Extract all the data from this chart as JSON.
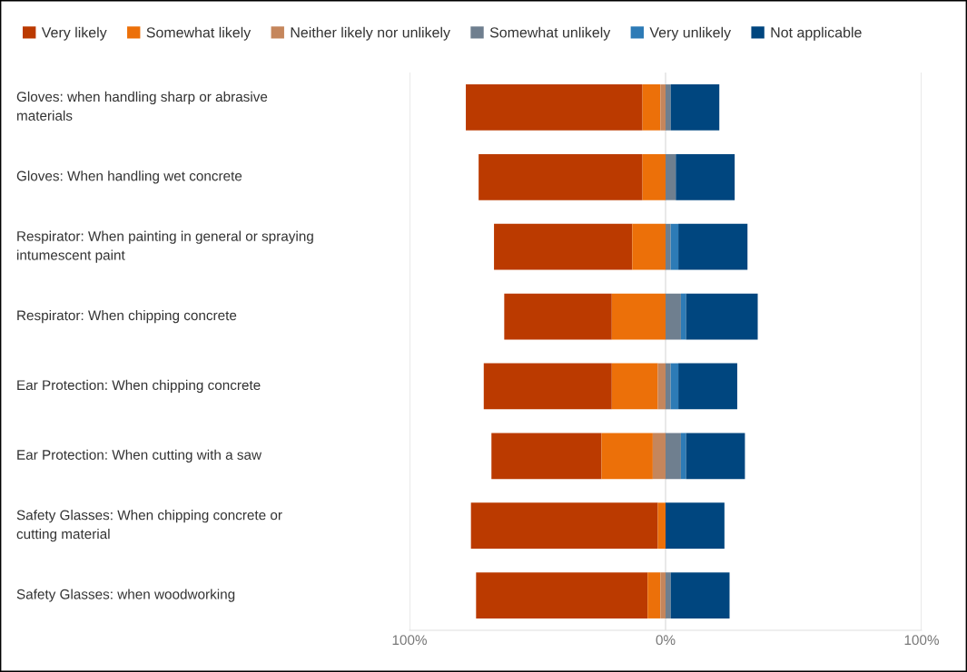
{
  "chart_data": {
    "type": "bar",
    "orientation": "horizontal",
    "categories": [
      "Gloves: when handling sharp or abrasive materials",
      "Gloves: When handling wet concrete",
      "Respirator: When painting in general or spraying intumescent paint",
      "Respirator: When chipping concrete",
      "Ear Protection: When chipping concrete",
      "Ear Protection: When cutting with a saw",
      "Safety Glasses: When chipping concrete or cutting material",
      "Safety Glasses: when woodworking"
    ],
    "series": [
      {
        "name": "Very likely",
        "color": "#bb3a00",
        "values": [
          69,
          64,
          54,
          42,
          50,
          43,
          73,
          67
        ],
        "base": [
          -78,
          -73,
          -67,
          -63,
          -71,
          -68,
          -76,
          -74
        ]
      },
      {
        "name": "Somewhat likely",
        "color": "#ec7009",
        "values": [
          7,
          9,
          13,
          21,
          18,
          20,
          3,
          5
        ],
        "base": [
          -9,
          -9,
          -13,
          -21,
          -21,
          -25,
          -3,
          -7
        ]
      },
      {
        "name": "Neither likely nor unlikely",
        "color": "#c5865c",
        "values": [
          2,
          null,
          null,
          null,
          3,
          5,
          null,
          2
        ],
        "base": [
          -2,
          null,
          null,
          null,
          -3,
          -5,
          null,
          -2
        ]
      },
      {
        "name": "Somewhat unlikely",
        "color": "#6f7f8f",
        "values": [
          2,
          4,
          2,
          6,
          2,
          6,
          null,
          2
        ],
        "base": [
          0,
          0,
          0,
          0,
          0,
          0,
          null,
          0
        ]
      },
      {
        "name": "Very unlikely",
        "color": "#2d7bb6",
        "values": [
          null,
          null,
          3,
          2,
          3,
          2,
          null,
          null
        ],
        "base": [
          null,
          null,
          2,
          6,
          2,
          6,
          null,
          null
        ]
      },
      {
        "name": "Not applicable",
        "color": "#00467f",
        "values": [
          19,
          23,
          27,
          28,
          23,
          23,
          23,
          23
        ],
        "base": [
          2,
          4,
          5,
          8,
          5,
          8,
          0,
          2
        ]
      }
    ],
    "xlim": [
      -100,
      100
    ],
    "xticks": [
      {
        "value": -100,
        "label": "100%"
      },
      {
        "value": 0,
        "label": "0%"
      },
      {
        "value": 100,
        "label": "100%"
      }
    ],
    "grid": "x",
    "legend": "top left"
  }
}
